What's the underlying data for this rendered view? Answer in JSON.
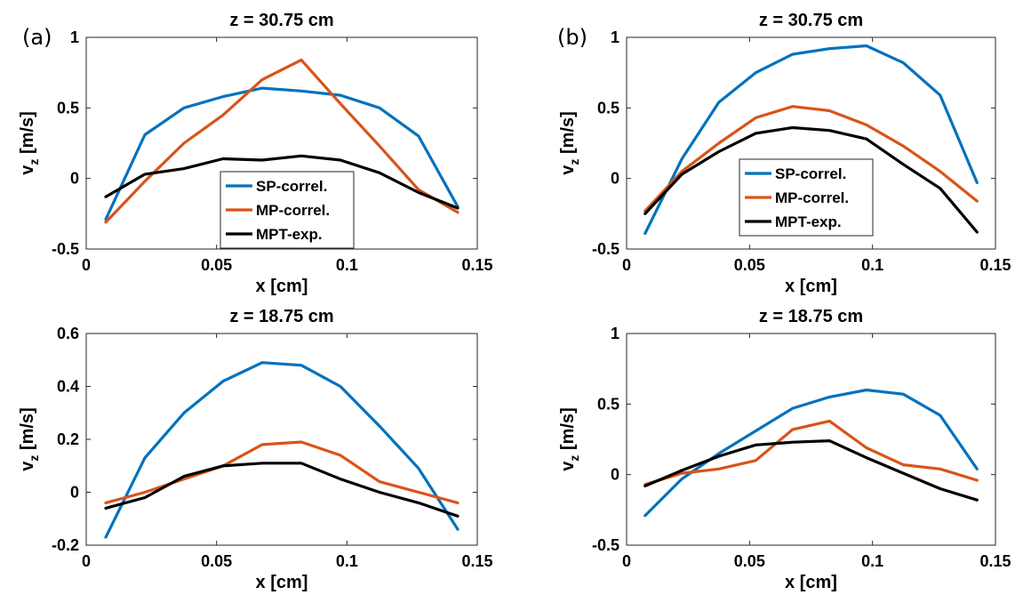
{
  "panel_labels": [
    "(a)",
    "(b)"
  ],
  "chart_data": [
    {
      "type": "line",
      "title": "z = 30.75 cm",
      "xlabel": "x [cm]",
      "ylabel": "v_z [m/s]",
      "xlim": [
        0,
        0.15
      ],
      "ylim": [
        -0.5,
        1
      ],
      "xticks": [
        0,
        0.05,
        0.1,
        0.15
      ],
      "xtick_labels": [
        "0",
        "0.05",
        "0.1",
        "0.15"
      ],
      "yticks": [
        -0.5,
        0,
        0.5,
        1
      ],
      "ytick_labels": [
        "-0.5",
        "0",
        "0.5",
        "1"
      ],
      "grid": false,
      "legend": "center",
      "x": [
        0.0075,
        0.0225,
        0.0375,
        0.0525,
        0.0675,
        0.0825,
        0.0975,
        0.1125,
        0.1275,
        0.1425
      ],
      "series": [
        {
          "name": "SP-correl.",
          "color": "#0072BD",
          "values": [
            -0.29,
            0.31,
            0.5,
            0.58,
            0.64,
            0.62,
            0.59,
            0.5,
            0.3,
            -0.2
          ]
        },
        {
          "name": "MP-correl.",
          "color": "#D95319",
          "values": [
            -0.31,
            -0.02,
            0.25,
            0.45,
            0.7,
            0.84,
            0.53,
            0.23,
            -0.08,
            -0.24
          ]
        },
        {
          "name": "MPT-exp.",
          "color": "#000000",
          "values": [
            -0.13,
            0.03,
            0.07,
            0.14,
            0.13,
            0.16,
            0.13,
            0.04,
            -0.1,
            -0.21
          ]
        }
      ]
    },
    {
      "type": "line",
      "title": "z = 30.75 cm",
      "xlabel": "x [cm]",
      "ylabel": "v_z [m/s]",
      "xlim": [
        0,
        0.15
      ],
      "ylim": [
        -0.5,
        1
      ],
      "xticks": [
        0,
        0.05,
        0.1,
        0.15
      ],
      "xtick_labels": [
        "0",
        "0.05",
        "0.1",
        "0.15"
      ],
      "yticks": [
        -0.5,
        0,
        0.5,
        1
      ],
      "ytick_labels": [
        "-0.5",
        "0",
        "0.5",
        "1"
      ],
      "grid": false,
      "legend": "lower-center",
      "x": [
        0.0075,
        0.0225,
        0.0375,
        0.0525,
        0.0675,
        0.0825,
        0.0975,
        0.1125,
        0.1275,
        0.1425
      ],
      "series": [
        {
          "name": "SP-correl.",
          "color": "#0072BD",
          "values": [
            -0.39,
            0.14,
            0.54,
            0.75,
            0.88,
            0.92,
            0.94,
            0.82,
            0.59,
            -0.03
          ]
        },
        {
          "name": "MP-correl.",
          "color": "#D95319",
          "values": [
            -0.23,
            0.05,
            0.25,
            0.43,
            0.51,
            0.48,
            0.38,
            0.23,
            0.05,
            -0.16
          ]
        },
        {
          "name": "MPT-exp.",
          "color": "#000000",
          "values": [
            -0.25,
            0.03,
            0.19,
            0.32,
            0.36,
            0.34,
            0.28,
            0.1,
            -0.07,
            -0.38
          ]
        }
      ]
    },
    {
      "type": "line",
      "title": "z = 18.75 cm",
      "xlabel": "x [cm]",
      "ylabel": "v_z [m/s]",
      "xlim": [
        0,
        0.15
      ],
      "ylim": [
        -0.2,
        0.6
      ],
      "xticks": [
        0,
        0.05,
        0.1,
        0.15
      ],
      "xtick_labels": [
        "0",
        "0.05",
        "0.1",
        "0.15"
      ],
      "yticks": [
        -0.2,
        0,
        0.2,
        0.4,
        0.6
      ],
      "ytick_labels": [
        "-0.2",
        "0",
        "0.2",
        "0.4",
        "0.6"
      ],
      "grid": false,
      "x": [
        0.0075,
        0.0225,
        0.0375,
        0.0525,
        0.0675,
        0.0825,
        0.0975,
        0.1125,
        0.1275,
        0.1425
      ],
      "series": [
        {
          "color": "#0072BD",
          "values": [
            -0.17,
            0.13,
            0.3,
            0.42,
            0.49,
            0.48,
            0.4,
            0.25,
            0.09,
            -0.14
          ]
        },
        {
          "color": "#D95319",
          "values": [
            -0.04,
            0.0,
            0.05,
            0.1,
            0.18,
            0.19,
            0.14,
            0.04,
            0.0,
            -0.04
          ]
        },
        {
          "color": "#000000",
          "values": [
            -0.06,
            -0.02,
            0.06,
            0.1,
            0.11,
            0.11,
            0.05,
            0.0,
            -0.04,
            -0.09
          ]
        }
      ]
    },
    {
      "type": "line",
      "title": "z = 18.75 cm",
      "xlabel": "x [cm]",
      "ylabel": "v_z [m/s]",
      "xlim": [
        0,
        0.15
      ],
      "ylim": [
        -0.5,
        1
      ],
      "xticks": [
        0,
        0.05,
        0.1,
        0.15
      ],
      "xtick_labels": [
        "0",
        "0.05",
        "0.1",
        "0.15"
      ],
      "yticks": [
        -0.5,
        0,
        0.5,
        1
      ],
      "ytick_labels": [
        "-0.5",
        "0",
        "0.5",
        "1"
      ],
      "grid": false,
      "x": [
        0.0075,
        0.0225,
        0.0375,
        0.0525,
        0.0675,
        0.0825,
        0.0975,
        0.1125,
        0.1275,
        0.1425
      ],
      "series": [
        {
          "color": "#0072BD",
          "values": [
            -0.29,
            -0.03,
            0.15,
            0.31,
            0.47,
            0.55,
            0.6,
            0.57,
            0.42,
            0.04
          ]
        },
        {
          "color": "#D95319",
          "values": [
            -0.07,
            0.01,
            0.04,
            0.1,
            0.32,
            0.38,
            0.19,
            0.07,
            0.04,
            -0.04
          ]
        },
        {
          "color": "#000000",
          "values": [
            -0.08,
            0.03,
            0.13,
            0.21,
            0.23,
            0.24,
            0.12,
            0.01,
            -0.1,
            -0.18
          ]
        }
      ]
    }
  ]
}
